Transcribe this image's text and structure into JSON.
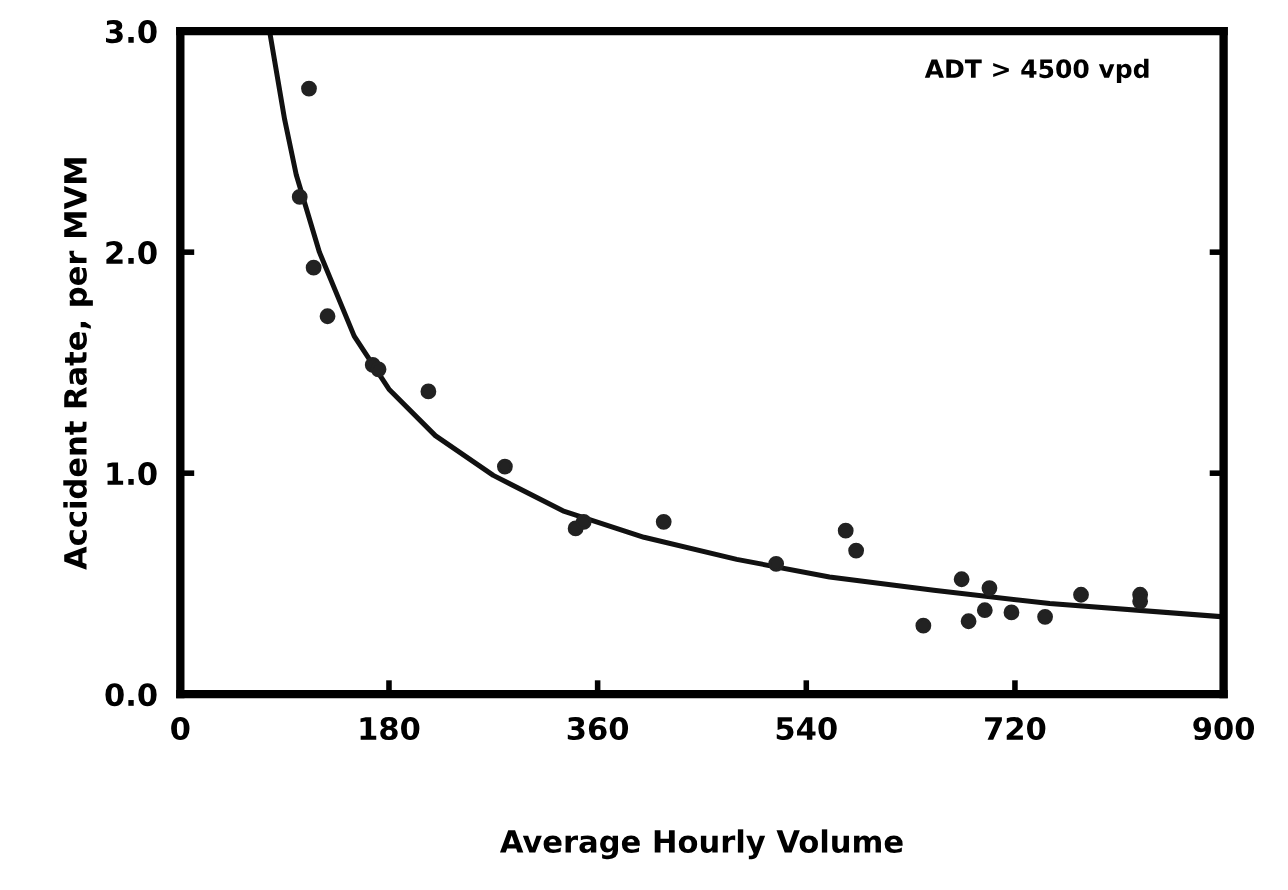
{
  "chart_data": {
    "type": "scatter",
    "xlabel": "Average Hourly Volume",
    "ylabel": "Accident Rate, per MVM",
    "annotations": [
      "ADT > 4500 vpd"
    ],
    "xlim": [
      0,
      900
    ],
    "ylim": [
      0,
      3.0
    ],
    "xticks": [
      0,
      180,
      360,
      540,
      720,
      900
    ],
    "yticks": [
      {
        "value": 0,
        "label": "0.0"
      },
      {
        "value": 1,
        "label": "1.0"
      },
      {
        "value": 2,
        "label": "2.0"
      },
      {
        "value": 3,
        "label": "3.0"
      }
    ],
    "grid": false,
    "legend": false,
    "marker": "circle",
    "series": [
      {
        "color": "#222222",
        "x": [
          111,
          103,
          115,
          127,
          166,
          171,
          214,
          280,
          341,
          348,
          417,
          514,
          574,
          583,
          641,
          674,
          680,
          694,
          698,
          717,
          746,
          777,
          828,
          828
        ],
        "values": [
          2.74,
          2.25,
          1.93,
          1.71,
          1.49,
          1.47,
          1.37,
          1.03,
          0.75,
          0.78,
          0.78,
          0.59,
          0.74,
          0.65,
          0.31,
          0.52,
          0.33,
          0.38,
          0.48,
          0.37,
          0.35,
          0.45,
          0.45,
          0.42
        ]
      },
      {
        "type": "line",
        "color": "#111111",
        "line_style": "solid",
        "marker": "none",
        "x": [
          77,
          90,
          100,
          120,
          150,
          180,
          220,
          270,
          330,
          400,
          480,
          560,
          650,
          750,
          900
        ],
        "values": [
          3.0,
          2.6,
          2.35,
          2.0,
          1.62,
          1.38,
          1.17,
          0.99,
          0.83,
          0.71,
          0.61,
          0.53,
          0.47,
          0.41,
          0.35
        ]
      }
    ]
  }
}
